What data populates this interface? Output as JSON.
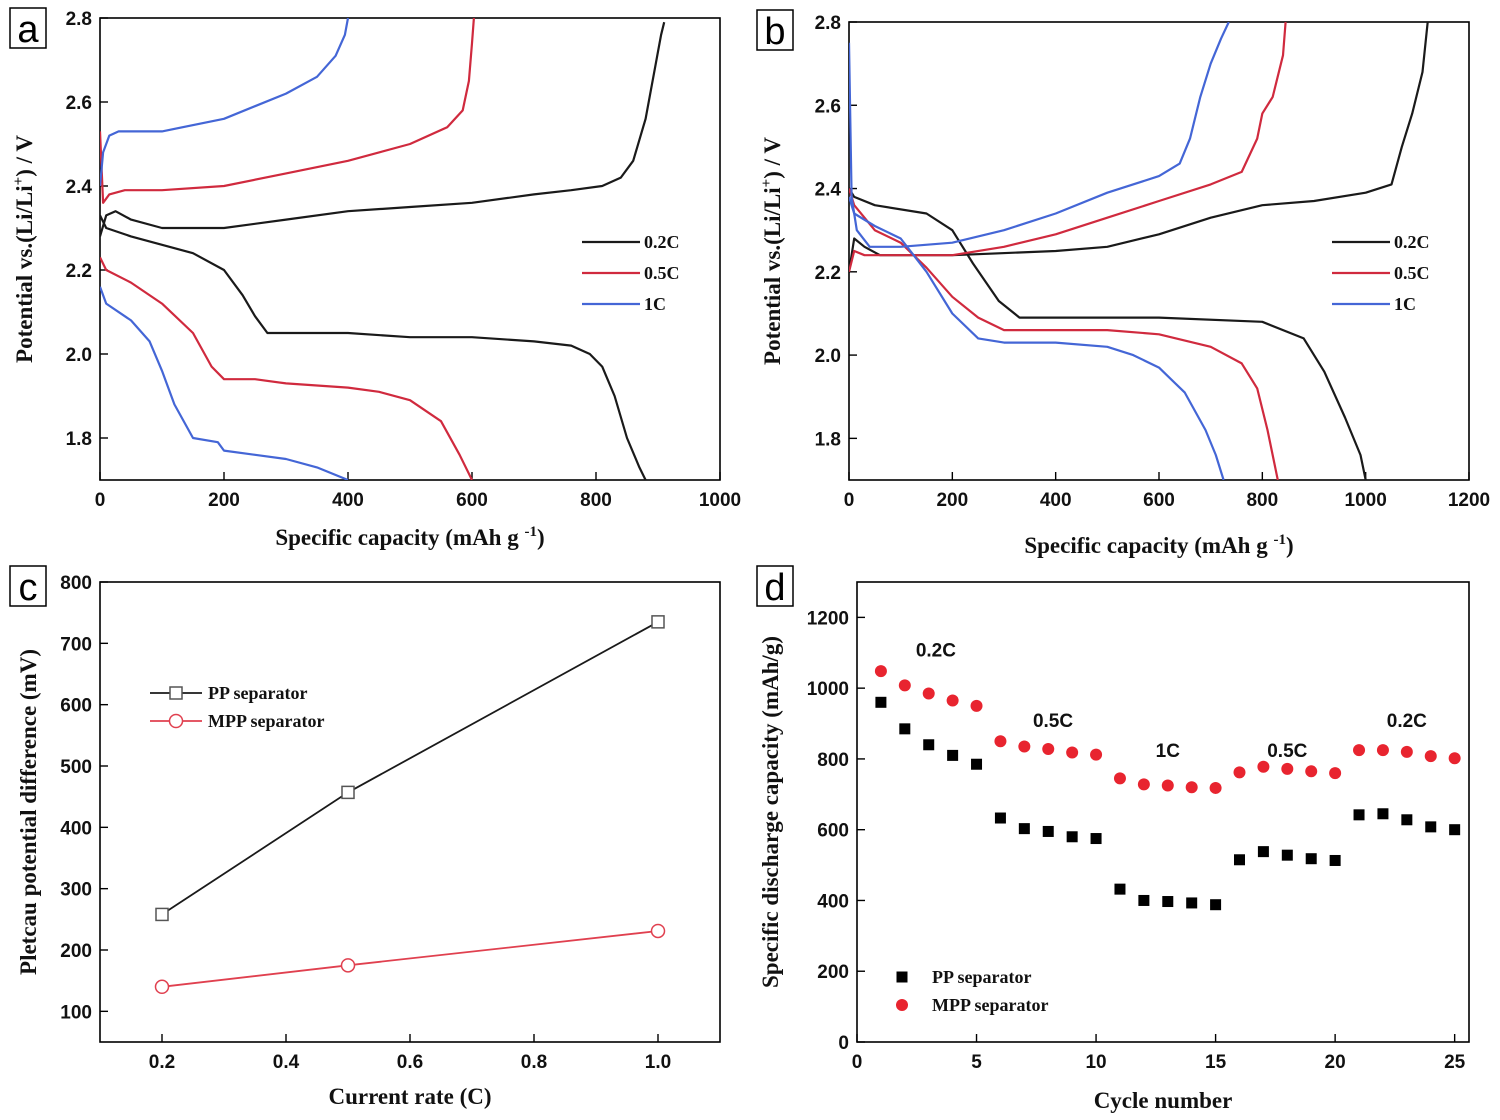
{
  "chart_data": [
    {
      "panel": "a",
      "type": "line",
      "xlabel": "Specific capacity (mAh g",
      "xlabel_sup": "-1",
      "ylabel": "Potential vs.(Li/Li",
      "ylabel_sup": "+",
      "ylabel_end": ") / V",
      "xlim": [
        0,
        1000
      ],
      "ylim": [
        1.7,
        2.8
      ],
      "xticks": [
        0,
        200,
        400,
        600,
        800,
        1000
      ],
      "xtick_labels": [
        "0",
        "200",
        "400",
        "600",
        "800",
        "1000"
      ],
      "yticks": [
        1.8,
        2.0,
        2.2,
        2.4,
        2.6,
        2.8
      ],
      "ytick_labels": [
        "1.8",
        "2.0",
        "2.2",
        "2.4",
        "2.6",
        "2.8"
      ],
      "legend_position": "center-right",
      "series": [
        {
          "name": "0.2C",
          "color": "#1a1a1a",
          "segments": [
            {
              "part": "charge",
              "x": [
                0,
                10,
                25,
                50,
                100,
                200,
                300,
                400,
                500,
                600,
                700,
                760,
                810,
                840,
                860,
                880,
                890,
                895,
                900,
                905,
                910
              ],
              "y": [
                2.28,
                2.33,
                2.34,
                2.32,
                2.3,
                2.3,
                2.32,
                2.34,
                2.35,
                2.36,
                2.38,
                2.39,
                2.4,
                2.42,
                2.46,
                2.56,
                2.64,
                2.68,
                2.72,
                2.76,
                2.79
              ]
            },
            {
              "part": "discharge",
              "x": [
                0,
                10,
                50,
                100,
                150,
                200,
                230,
                250,
                270,
                300,
                400,
                500,
                600,
                700,
                760,
                790,
                810,
                830,
                850,
                870,
                880
              ],
              "y": [
                2.33,
                2.3,
                2.28,
                2.26,
                2.24,
                2.2,
                2.14,
                2.09,
                2.05,
                2.05,
                2.05,
                2.04,
                2.04,
                2.03,
                2.02,
                2.0,
                1.97,
                1.9,
                1.8,
                1.73,
                1.7
              ]
            }
          ]
        },
        {
          "name": "0.5C",
          "color": "#d02a3e",
          "segments": [
            {
              "part": "charge",
              "x": [
                0,
                5,
                15,
                40,
                100,
                200,
                300,
                400,
                500,
                560,
                585,
                595,
                600,
                603
              ],
              "y": [
                2.53,
                2.36,
                2.38,
                2.39,
                2.39,
                2.4,
                2.43,
                2.46,
                2.5,
                2.54,
                2.58,
                2.65,
                2.74,
                2.8
              ]
            },
            {
              "part": "discharge",
              "x": [
                0,
                10,
                50,
                100,
                150,
                180,
                200,
                250,
                300,
                400,
                450,
                500,
                550,
                580,
                600
              ],
              "y": [
                2.23,
                2.2,
                2.17,
                2.12,
                2.05,
                1.97,
                1.94,
                1.94,
                1.93,
                1.92,
                1.91,
                1.89,
                1.84,
                1.76,
                1.7
              ]
            }
          ]
        },
        {
          "name": "1C",
          "color": "#4466d6",
          "segments": [
            {
              "part": "charge",
              "x": [
                0,
                5,
                15,
                30,
                60,
                100,
                200,
                250,
                300,
                350,
                380,
                395,
                400
              ],
              "y": [
                2.4,
                2.48,
                2.52,
                2.53,
                2.53,
                2.53,
                2.56,
                2.59,
                2.62,
                2.66,
                2.71,
                2.76,
                2.8
              ]
            },
            {
              "part": "discharge",
              "x": [
                0,
                10,
                50,
                80,
                100,
                120,
                150,
                190,
                200,
                250,
                300,
                350,
                400
              ],
              "y": [
                2.16,
                2.12,
                2.08,
                2.03,
                1.96,
                1.88,
                1.8,
                1.79,
                1.77,
                1.76,
                1.75,
                1.73,
                1.7
              ]
            }
          ]
        }
      ]
    },
    {
      "panel": "b",
      "type": "line",
      "xlabel": "Specific capacity (mAh g",
      "xlabel_sup": "-1",
      "ylabel": "Potential vs.(Li/Li",
      "ylabel_sup": "+",
      "ylabel_end": ") / V",
      "xlim": [
        0,
        1200
      ],
      "ylim": [
        1.7,
        2.8
      ],
      "xticks": [
        0,
        200,
        400,
        600,
        800,
        1000,
        1200
      ],
      "xtick_labels": [
        "0",
        "200",
        "400",
        "600",
        "800",
        "1000",
        "1200"
      ],
      "yticks": [
        1.8,
        2.0,
        2.2,
        2.4,
        2.6,
        2.8
      ],
      "ytick_labels": [
        "1.8",
        "2.0",
        "2.2",
        "2.4",
        "2.6",
        "2.8"
      ],
      "legend_position": "center-right",
      "series": [
        {
          "name": "0.2C",
          "color": "#1a1a1a",
          "segments": [
            {
              "part": "charge",
              "x": [
                0,
                10,
                30,
                60,
                200,
                400,
                500,
                600,
                700,
                800,
                900,
                1000,
                1050,
                1070,
                1090,
                1110,
                1120
              ],
              "y": [
                2.2,
                2.28,
                2.26,
                2.24,
                2.24,
                2.25,
                2.26,
                2.29,
                2.33,
                2.36,
                2.37,
                2.39,
                2.41,
                2.5,
                2.58,
                2.68,
                2.8
              ]
            },
            {
              "part": "discharge",
              "x": [
                0,
                10,
                50,
                150,
                200,
                240,
                290,
                330,
                350,
                400,
                600,
                800,
                880,
                920,
                960,
                990,
                1000
              ],
              "y": [
                2.4,
                2.38,
                2.36,
                2.34,
                2.3,
                2.22,
                2.13,
                2.09,
                2.09,
                2.09,
                2.09,
                2.08,
                2.04,
                1.96,
                1.85,
                1.76,
                1.7
              ]
            }
          ]
        },
        {
          "name": "0.5C",
          "color": "#d02a3e",
          "segments": [
            {
              "part": "charge",
              "x": [
                0,
                10,
                30,
                60,
                200,
                300,
                400,
                500,
                600,
                700,
                760,
                790,
                800,
                820,
                840,
                845
              ],
              "y": [
                2.2,
                2.25,
                2.24,
                2.24,
                2.24,
                2.26,
                2.29,
                2.33,
                2.37,
                2.41,
                2.44,
                2.52,
                2.58,
                2.62,
                2.72,
                2.8
              ]
            },
            {
              "part": "discharge",
              "x": [
                0,
                10,
                50,
                100,
                150,
                200,
                250,
                300,
                400,
                500,
                600,
                700,
                760,
                790,
                810,
                830
              ],
              "y": [
                2.4,
                2.36,
                2.3,
                2.27,
                2.21,
                2.14,
                2.09,
                2.06,
                2.06,
                2.06,
                2.05,
                2.02,
                1.98,
                1.92,
                1.82,
                1.7
              ]
            }
          ]
        },
        {
          "name": "1C",
          "color": "#4466d6",
          "segments": [
            {
              "part": "charge",
              "x": [
                0,
                5,
                15,
                40,
                100,
                200,
                300,
                400,
                500,
                600,
                640,
                660,
                680,
                700,
                720,
                735
              ],
              "y": [
                2.75,
                2.38,
                2.3,
                2.26,
                2.26,
                2.27,
                2.3,
                2.34,
                2.39,
                2.43,
                2.46,
                2.52,
                2.62,
                2.7,
                2.76,
                2.8
              ]
            },
            {
              "part": "discharge",
              "x": [
                0,
                10,
                50,
                100,
                150,
                200,
                250,
                300,
                400,
                500,
                550,
                600,
                650,
                690,
                710,
                725
              ],
              "y": [
                2.38,
                2.34,
                2.31,
                2.28,
                2.2,
                2.1,
                2.04,
                2.03,
                2.03,
                2.02,
                2.0,
                1.97,
                1.91,
                1.82,
                1.76,
                1.7
              ]
            }
          ]
        }
      ]
    },
    {
      "panel": "c",
      "type": "line",
      "xlabel": "Current rate (C)",
      "ylabel": "Pletcau potential difference (mV)",
      "xlim": [
        0.1,
        1.1
      ],
      "ylim": [
        50,
        800
      ],
      "xticks": [
        0.2,
        0.4,
        0.6,
        0.8,
        1.0
      ],
      "xtick_labels": [
        "0.2",
        "0.4",
        "0.6",
        "0.8",
        "1.0"
      ],
      "yticks": [
        100,
        200,
        300,
        400,
        500,
        600,
        700,
        800
      ],
      "ytick_labels": [
        "100",
        "200",
        "300",
        "400",
        "500",
        "600",
        "700",
        "800"
      ],
      "legend_position": "upper-left",
      "series": [
        {
          "name": "PP separator",
          "color": "#1a1a1a",
          "marker": "square",
          "x": [
            0.2,
            0.5,
            1.0
          ],
          "y": [
            258,
            457,
            735
          ]
        },
        {
          "name": "MPP separator",
          "color": "#e0404f",
          "marker": "circle",
          "x": [
            0.2,
            0.5,
            1.0
          ],
          "y": [
            140,
            175,
            231
          ]
        }
      ]
    },
    {
      "panel": "d",
      "type": "scatter",
      "xlabel": "Cycle number",
      "ylabel": "Specific discharge capacity (mAh/g)",
      "xlim": [
        0,
        25.6
      ],
      "ylim": [
        0,
        1300
      ],
      "xticks": [
        0,
        5,
        10,
        15,
        20,
        25
      ],
      "xtick_labels": [
        "0",
        "5",
        "10",
        "15",
        "20",
        "25"
      ],
      "yticks": [
        0,
        200,
        400,
        600,
        800,
        1000,
        1200
      ],
      "ytick_labels": [
        "0",
        "200",
        "400",
        "600",
        "800",
        "1000",
        "1200"
      ],
      "legend_position": "lower-left",
      "annotations": [
        {
          "text": "0.2C",
          "x": 3.3,
          "y": 1090
        },
        {
          "text": "0.5C",
          "x": 8.2,
          "y": 890
        },
        {
          "text": "1C",
          "x": 13.0,
          "y": 805
        },
        {
          "text": "0.5C",
          "x": 18.0,
          "y": 805
        },
        {
          "text": "0.2C",
          "x": 23.0,
          "y": 890
        }
      ],
      "series": [
        {
          "name": "PP separator",
          "color": "#000000",
          "marker": "square",
          "x": [
            1,
            2,
            3,
            4,
            5,
            6,
            7,
            8,
            9,
            10,
            11,
            12,
            13,
            14,
            15,
            16,
            17,
            18,
            19,
            20,
            21,
            22,
            23,
            24,
            25
          ],
          "y": [
            960,
            885,
            840,
            810,
            785,
            633,
            603,
            595,
            580,
            575,
            432,
            400,
            397,
            393,
            388,
            515,
            538,
            528,
            518,
            513,
            642,
            645,
            628,
            608,
            600
          ]
        },
        {
          "name": "MPP separator",
          "color": "#e8242f",
          "marker": "circle",
          "x": [
            1,
            2,
            3,
            4,
            5,
            6,
            7,
            8,
            9,
            10,
            11,
            12,
            13,
            14,
            15,
            16,
            17,
            18,
            19,
            20,
            21,
            22,
            23,
            24,
            25
          ],
          "y": [
            1048,
            1008,
            985,
            965,
            950,
            850,
            835,
            828,
            818,
            812,
            745,
            728,
            725,
            720,
            718,
            762,
            778,
            772,
            765,
            760,
            825,
            825,
            820,
            808,
            802
          ]
        }
      ]
    }
  ]
}
